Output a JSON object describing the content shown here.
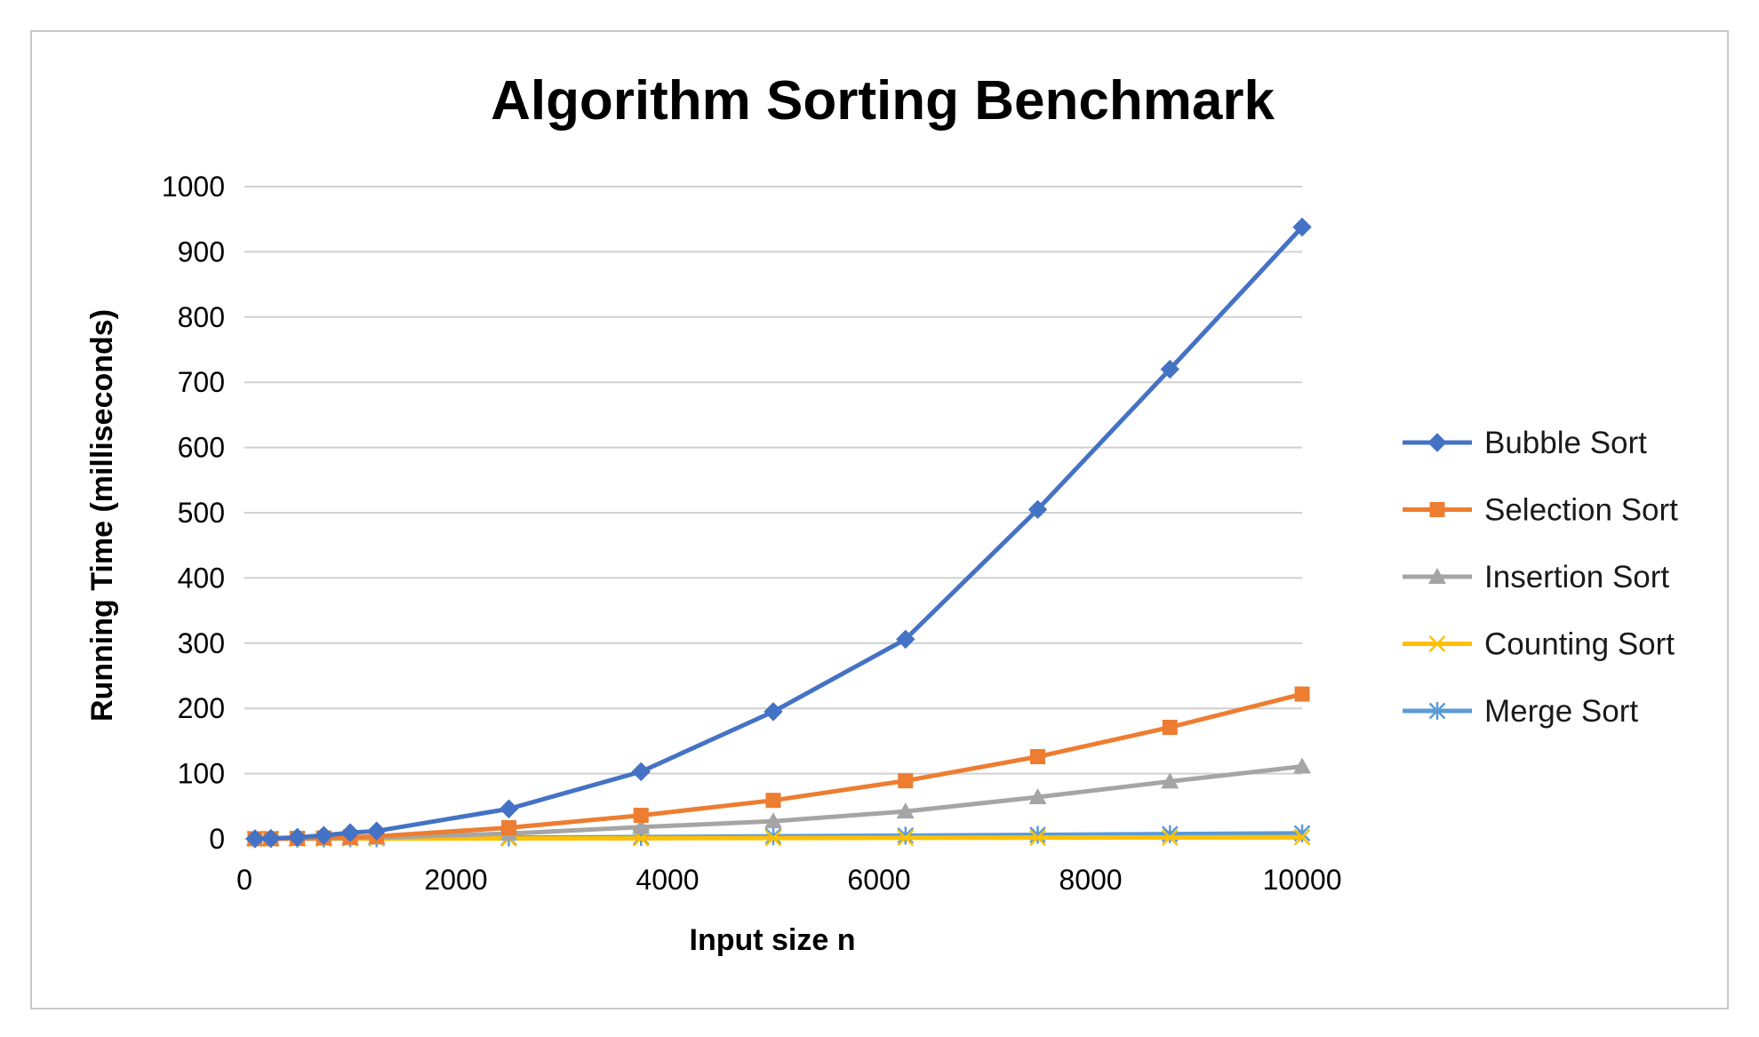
{
  "chart_data": {
    "type": "line",
    "title": "Algorithm Sorting Benchmark",
    "xlabel": "Input size n",
    "ylabel": "Running Time (milliseconds)",
    "xlim": [
      0,
      10000
    ],
    "ylim": [
      0,
      1000
    ],
    "xticks": [
      0,
      2000,
      4000,
      6000,
      8000,
      10000
    ],
    "yticks": [
      0,
      100,
      200,
      300,
      400,
      500,
      600,
      700,
      800,
      900,
      1000
    ],
    "grid": "horizontal",
    "legend_position": "right",
    "x": [
      100,
      250,
      500,
      750,
      1000,
      1250,
      2500,
      3750,
      5000,
      6250,
      7500,
      8750,
      10000
    ],
    "series": [
      {
        "name": "Bubble Sort",
        "color": "#4472C4",
        "marker": "diamond",
        "values": [
          0.1,
          0.6,
          2.3,
          5.3,
          9.4,
          12,
          46,
          103,
          195,
          306,
          505,
          720,
          938
        ]
      },
      {
        "name": "Selection Sort",
        "color": "#ED7D31",
        "marker": "square",
        "values": [
          0.1,
          0.2,
          0.6,
          1.4,
          2.4,
          4,
          17,
          36,
          59,
          89,
          126,
          171,
          222
        ]
      },
      {
        "name": "Insertion Sort",
        "color": "#A5A5A5",
        "marker": "triangle",
        "values": [
          0.05,
          0.1,
          0.3,
          0.7,
          1.2,
          2,
          8,
          18,
          27,
          42,
          64,
          88,
          111
        ]
      },
      {
        "name": "Counting Sort",
        "color": "#FFC000",
        "marker": "x",
        "values": [
          0.05,
          0.1,
          0.1,
          0.2,
          0.2,
          0.3,
          0.6,
          0.9,
          1.2,
          1.5,
          1.8,
          2.1,
          2.5
        ]
      },
      {
        "name": "Merge Sort",
        "color": "#5B9BD5",
        "marker": "star",
        "values": [
          0.1,
          0.2,
          0.3,
          0.5,
          0.6,
          0.8,
          1.8,
          2.8,
          4,
          5,
          6.2,
          7.3,
          8.5
        ]
      }
    ]
  }
}
